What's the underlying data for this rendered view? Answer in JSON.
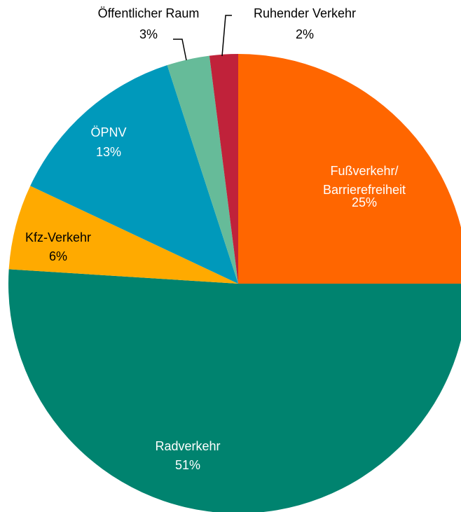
{
  "chart_data": {
    "type": "pie",
    "categories": [
      "Fußverkehr/\nBarrierefreiheit",
      "Radverkehr",
      "Kfz-Verkehr",
      "ÖPNV",
      "Öffentlicher Raum",
      "Ruhender Verkehr"
    ],
    "values": [
      25,
      51,
      6,
      13,
      3,
      2
    ],
    "value_labels": [
      "25%",
      "51%",
      "6%",
      "13%",
      "3%",
      "2%"
    ],
    "colors": [
      "#ff6600",
      "#00836f",
      "#ffaa00",
      "#0099bb",
      "#66bb99",
      "#c0223a"
    ]
  }
}
